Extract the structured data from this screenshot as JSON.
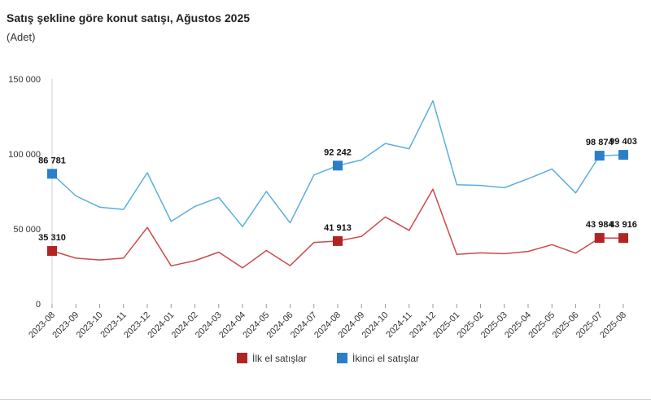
{
  "chart_data": {
    "type": "line",
    "title": "Satış şekline göre konut satışı, Ağustos 2025",
    "subtitle": "(Adet)",
    "xlabel": "",
    "ylabel": "",
    "ylim": [
      0,
      150000
    ],
    "yticks": [
      0,
      50000,
      100000,
      150000
    ],
    "ytick_labels": [
      "0",
      "50 000",
      "100 000",
      "150 000"
    ],
    "grid": false,
    "legend": "bottom",
    "categories": [
      "2023-08",
      "2023-09",
      "2023-10",
      "2023-11",
      "2023-12",
      "2024-01",
      "2024-02",
      "2024-03",
      "2024-04",
      "2024-05",
      "2024-06",
      "2024-07",
      "2024-08",
      "2024-09",
      "2024-10",
      "2024-11",
      "2024-12",
      "2025-01",
      "2025-02",
      "2025-03",
      "2025-04",
      "2025-05",
      "2025-06",
      "2025-07",
      "2025-08"
    ],
    "series": [
      {
        "name": "İlk el satışlar",
        "color": "#b22424",
        "line_color": "#cc4a4a",
        "values": [
          35310,
          30500,
          29300,
          30500,
          51000,
          25400,
          28800,
          34500,
          24000,
          35600,
          25500,
          41000,
          41913,
          45000,
          58000,
          49000,
          76500,
          33000,
          34000,
          33500,
          35000,
          39500,
          33800,
          43984,
          43916
        ],
        "labels": [
          {
            "index": 0,
            "text": "35 310"
          },
          {
            "index": 12,
            "text": "41 913"
          },
          {
            "index": 23,
            "text": "43 984"
          },
          {
            "index": 24,
            "text": "43 916"
          }
        ]
      },
      {
        "name": "İkinci el satışlar",
        "color": "#2b7fc9",
        "line_color": "#5aaee0",
        "values": [
          86781,
          72000,
          64500,
          63000,
          87500,
          55000,
          65000,
          71000,
          51500,
          75000,
          54000,
          86000,
          92242,
          96000,
          107000,
          103500,
          135500,
          79500,
          79000,
          77500,
          83500,
          90000,
          74000,
          98874,
          99403
        ],
        "labels": [
          {
            "index": 0,
            "text": "86 781"
          },
          {
            "index": 12,
            "text": "92 242"
          },
          {
            "index": 23,
            "text": "98 874"
          },
          {
            "index": 24,
            "text": "99 403"
          }
        ]
      }
    ]
  }
}
